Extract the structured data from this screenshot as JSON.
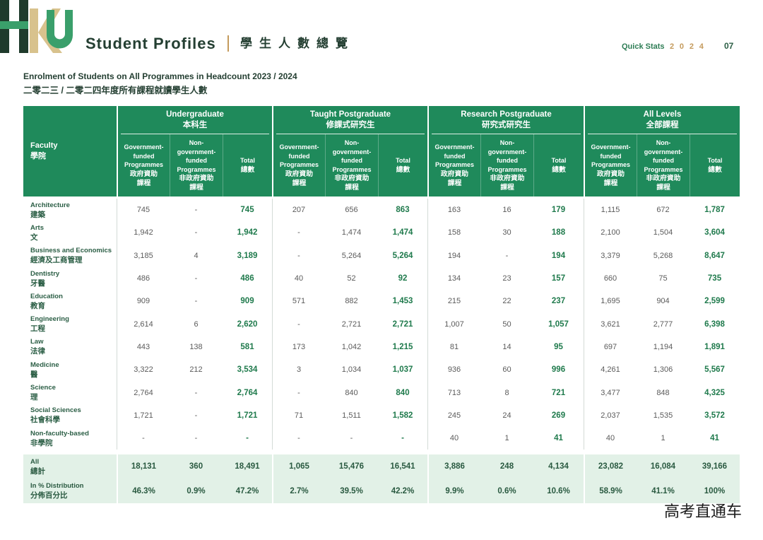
{
  "header": {
    "logo_text": "HKU",
    "title_en": "Student Profiles",
    "title_zh": "學生人數總覽",
    "section_label": "Quick Stats",
    "year": "2024",
    "page_number": "07"
  },
  "table_title": {
    "en": "Enrolment of Students on All Programmes in Headcount 2023 / 2024",
    "zh": "二零二三 / 二零二四年度所有課程就讀學生人數"
  },
  "table": {
    "faculty_header": {
      "en": "Faculty",
      "zh": "學院"
    },
    "groups": [
      {
        "en": "Undergraduate",
        "zh": "本科生"
      },
      {
        "en": "Taught Postgraduate",
        "zh": "修課式研究生"
      },
      {
        "en": "Research Postgraduate",
        "zh": "研究式研究生"
      },
      {
        "en": "All Levels",
        "zh": "全部課程"
      }
    ],
    "sub_columns": [
      {
        "en": "Government-funded Programmes",
        "zh": "政府資助課程"
      },
      {
        "en": "Non-government-funded Programmes",
        "zh": "非政府資助課程"
      },
      {
        "en": "Total",
        "zh": "總數"
      }
    ],
    "rows": [
      {
        "en": "Architecture",
        "zh": "建築",
        "values": [
          "745",
          "-",
          "745",
          "207",
          "656",
          "863",
          "163",
          "16",
          "179",
          "1,115",
          "672",
          "1,787"
        ]
      },
      {
        "en": "Arts",
        "zh": "文",
        "values": [
          "1,942",
          "-",
          "1,942",
          "-",
          "1,474",
          "1,474",
          "158",
          "30",
          "188",
          "2,100",
          "1,504",
          "3,604"
        ]
      },
      {
        "en": "Business and Economics",
        "zh": "經濟及工商管理",
        "values": [
          "3,185",
          "4",
          "3,189",
          "-",
          "5,264",
          "5,264",
          "194",
          "-",
          "194",
          "3,379",
          "5,268",
          "8,647"
        ]
      },
      {
        "en": "Dentistry",
        "zh": "牙醫",
        "values": [
          "486",
          "-",
          "486",
          "40",
          "52",
          "92",
          "134",
          "23",
          "157",
          "660",
          "75",
          "735"
        ]
      },
      {
        "en": "Education",
        "zh": "教育",
        "values": [
          "909",
          "-",
          "909",
          "571",
          "882",
          "1,453",
          "215",
          "22",
          "237",
          "1,695",
          "904",
          "2,599"
        ]
      },
      {
        "en": "Engineering",
        "zh": "工程",
        "values": [
          "2,614",
          "6",
          "2,620",
          "-",
          "2,721",
          "2,721",
          "1,007",
          "50",
          "1,057",
          "3,621",
          "2,777",
          "6,398"
        ]
      },
      {
        "en": "Law",
        "zh": "法律",
        "values": [
          "443",
          "138",
          "581",
          "173",
          "1,042",
          "1,215",
          "81",
          "14",
          "95",
          "697",
          "1,194",
          "1,891"
        ]
      },
      {
        "en": "Medicine",
        "zh": "醫",
        "values": [
          "3,322",
          "212",
          "3,534",
          "3",
          "1,034",
          "1,037",
          "936",
          "60",
          "996",
          "4,261",
          "1,306",
          "5,567"
        ]
      },
      {
        "en": "Science",
        "zh": "理",
        "values": [
          "2,764",
          "-",
          "2,764",
          "-",
          "840",
          "840",
          "713",
          "8",
          "721",
          "3,477",
          "848",
          "4,325"
        ]
      },
      {
        "en": "Social Sciences",
        "zh": "社會科學",
        "values": [
          "1,721",
          "-",
          "1,721",
          "71",
          "1,511",
          "1,582",
          "245",
          "24",
          "269",
          "2,037",
          "1,535",
          "3,572"
        ]
      },
      {
        "en": "Non-faculty-based",
        "zh": "非學院",
        "values": [
          "-",
          "-",
          "-",
          "-",
          "-",
          "-",
          "40",
          "1",
          "41",
          "40",
          "1",
          "41"
        ]
      }
    ],
    "summary_rows": [
      {
        "en": "All",
        "zh": "總計",
        "values": [
          "18,131",
          "360",
          "18,491",
          "1,065",
          "15,476",
          "16,541",
          "3,886",
          "248",
          "4,134",
          "23,082",
          "16,084",
          "39,166"
        ]
      },
      {
        "en": "In % Distribution",
        "zh": "分佈百分比",
        "values": [
          "46.3%",
          "0.9%",
          "47.2%",
          "2.7%",
          "39.5%",
          "42.2%",
          "9.9%",
          "0.6%",
          "10.6%",
          "58.9%",
          "41.1%",
          "100%"
        ]
      }
    ]
  },
  "watermark": "高考直通车",
  "colors": {
    "header_green": "#1f8a5b",
    "title_dark": "#243f32",
    "accent_tan": "#c49a5c",
    "section_green": "#2e7d55",
    "label_green": "#2b5e45",
    "total_green": "#1f7a4c",
    "summary_bg": "#e2f1e7",
    "summary_text": "#2a5a41",
    "logo_dark": "#1f3b2c",
    "logo_green": "#3a9f6b",
    "logo_tan": "#d8c28d"
  }
}
